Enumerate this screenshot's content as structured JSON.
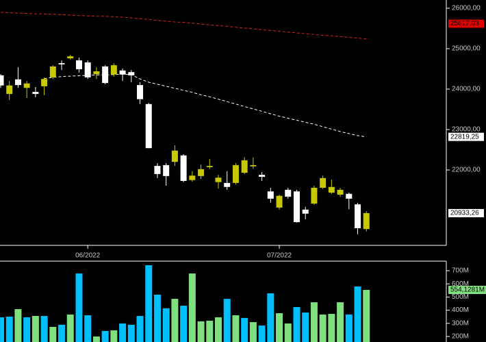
{
  "chart_data": [
    {
      "type": "candlestick",
      "categories": [
        null,
        null,
        null,
        null,
        null,
        null,
        null,
        null,
        null,
        null,
        "06/2022",
        null,
        null,
        null,
        null,
        null,
        null,
        null,
        null,
        null,
        null,
        null,
        null,
        null,
        null,
        null,
        null,
        null,
        null,
        null,
        null,
        null,
        "07/2022",
        null,
        null,
        null,
        null,
        null,
        null,
        null,
        null,
        null,
        null
      ],
      "open": [
        24340,
        23880,
        24240,
        24030,
        23930,
        24070,
        24290,
        24640,
        24760,
        24710,
        24660,
        24370,
        24560,
        24360,
        24460,
        24420,
        24100,
        23630,
        22100,
        22120,
        22200,
        22360,
        21750,
        21850,
        22070,
        21700,
        21680,
        21680,
        21930,
        22090,
        21880,
        21470,
        21070,
        21510,
        21470,
        21020,
        21170,
        21560,
        21440,
        21390,
        21410,
        21150,
        20540
      ],
      "high": [
        24370,
        24200,
        24540,
        24200,
        24050,
        24290,
        24590,
        24710,
        24850,
        24780,
        24710,
        24540,
        24590,
        24640,
        24510,
        24470,
        24170,
        23660,
        22170,
        22170,
        22610,
        22390,
        21970,
        22140,
        22270,
        21880,
        21970,
        22170,
        22310,
        22310,
        21950,
        21560,
        21390,
        21560,
        21510,
        21090,
        21610,
        21860,
        21760,
        21560,
        21440,
        21190,
        20980
      ],
      "low": [
        24030,
        23730,
        24030,
        23780,
        23800,
        23850,
        24250,
        24470,
        24730,
        24410,
        24250,
        24250,
        24120,
        24310,
        24200,
        24170,
        23630,
        22540,
        21800,
        21610,
        22100,
        21700,
        21710,
        21780,
        22020,
        21540,
        21510,
        21640,
        21900,
        22030,
        21730,
        21190,
        21020,
        21290,
        20700,
        20780,
        21140,
        21530,
        21410,
        21340,
        21030,
        20410,
        20480
      ],
      "close": [
        24090,
        24090,
        24100,
        24140,
        23880,
        24250,
        24560,
        24610,
        24810,
        24490,
        24290,
        24440,
        24150,
        24590,
        24360,
        24340,
        23750,
        22540,
        21900,
        21850,
        22480,
        21730,
        21860,
        22020,
        22100,
        21810,
        21580,
        22120,
        22240,
        22120,
        21830,
        21290,
        21360,
        21340,
        20710,
        20920,
        21560,
        21800,
        21580,
        21510,
        21290,
        20560,
        20933.26
      ],
      "up_color": "#c8c800",
      "down_color": "#ffffff",
      "series": [
        {
          "color": "#e02020",
          "values": [
            25900,
            25890,
            25880,
            25870,
            25860,
            25860,
            25850,
            25840,
            25830,
            25820,
            25810,
            25800,
            25800,
            25790,
            25780,
            25760,
            25740,
            25720,
            25700,
            25680,
            25660,
            25650,
            25630,
            25610,
            25590,
            25570,
            25550,
            25530,
            25510,
            25490,
            25470,
            25450,
            25430,
            25410,
            25390,
            25370,
            25350,
            25330,
            25320,
            25300,
            25280,
            25260,
            25240
          ]
        },
        {
          "color": "#ffffff",
          "values": [
            null,
            null,
            null,
            null,
            null,
            24260,
            24290,
            24310,
            24320,
            24330,
            24340,
            24350,
            24350,
            24360,
            24370,
            24360,
            24250,
            24170,
            24120,
            24070,
            24020,
            23970,
            23920,
            23860,
            23810,
            23750,
            23690,
            23630,
            23570,
            23510,
            23450,
            23390,
            23330,
            23280,
            23230,
            23180,
            23130,
            23070,
            23010,
            22950,
            22900,
            22850,
            22819.25
          ]
        }
      ],
      "markers": [
        {
          "value": 25617.03,
          "label": "25617,03",
          "color": "#e00000"
        },
        {
          "value": 22819.25,
          "label": "22819,25",
          "color": "#ffffff"
        },
        {
          "value": 20933.26,
          "label": "20933,26",
          "color": "#ffffff"
        }
      ],
      "ylim": [
        20136,
        26203
      ],
      "yticks": [
        {
          "value": 22000,
          "label": "22000,00"
        },
        {
          "value": 23000,
          "label": "23000,00"
        },
        {
          "value": 24000,
          "label": "24000,00"
        },
        {
          "value": 25000,
          "label": "25000,00"
        },
        {
          "value": 26000,
          "label": "26000,00"
        }
      ]
    },
    {
      "type": "bar",
      "values": [
        346,
        351,
        408,
        346,
        356,
        356,
        273,
        289,
        367,
        679,
        361,
        200,
        242,
        247,
        299,
        289,
        356,
        742,
        518,
        414,
        486,
        434,
        679,
        315,
        320,
        346,
        486,
        361,
        341,
        309,
        283,
        528,
        377,
        299,
        424,
        382,
        460,
        367,
        372,
        460,
        367,
        580,
        554.1281
      ],
      "value_labels": [
        null,
        null,
        null,
        null,
        null,
        null,
        null,
        null,
        null,
        null,
        null,
        null,
        null,
        null,
        null,
        null,
        null,
        null,
        null,
        null,
        null,
        null,
        null,
        null,
        null,
        null,
        null,
        null,
        null,
        null,
        null,
        null,
        null,
        null,
        null,
        null,
        null,
        null,
        null,
        null,
        null,
        null,
        "554,1281M"
      ],
      "colors": [
        "#00bfff",
        "#00bfff",
        "#80e080",
        "#00bfff",
        "#80e080",
        "#00bfff",
        "#80e080",
        "#00bfff",
        "#80e080",
        "#00bfff",
        "#00bfff",
        "#80e080",
        "#00bfff",
        "#80e080",
        "#00bfff",
        "#00bfff",
        "#00bfff",
        "#00bfff",
        "#00bfff",
        "#00bfff",
        "#80e080",
        "#00bfff",
        "#80e080",
        "#80e080",
        "#80e080",
        "#80e080",
        "#00bfff",
        "#80e080",
        "#00bfff",
        "#80e080",
        "#00bfff",
        "#00bfff",
        "#80e080",
        "#80e080",
        "#00bfff",
        "#00bfff",
        "#80e080",
        "#80e080",
        "#80e080",
        "#80e080",
        "#00bfff",
        "#00bfff",
        "#80e080"
      ],
      "label_color": "#80e080",
      "ylim": [
        158,
        773
      ],
      "yticks": [
        {
          "value": 200,
          "label": "200M"
        },
        {
          "value": 300,
          "label": "300M"
        },
        {
          "value": 400,
          "label": "400M"
        },
        {
          "value": 500,
          "label": "500M"
        },
        {
          "value": 600,
          "label": "600M"
        },
        {
          "value": 700,
          "label": "700M"
        }
      ]
    }
  ]
}
